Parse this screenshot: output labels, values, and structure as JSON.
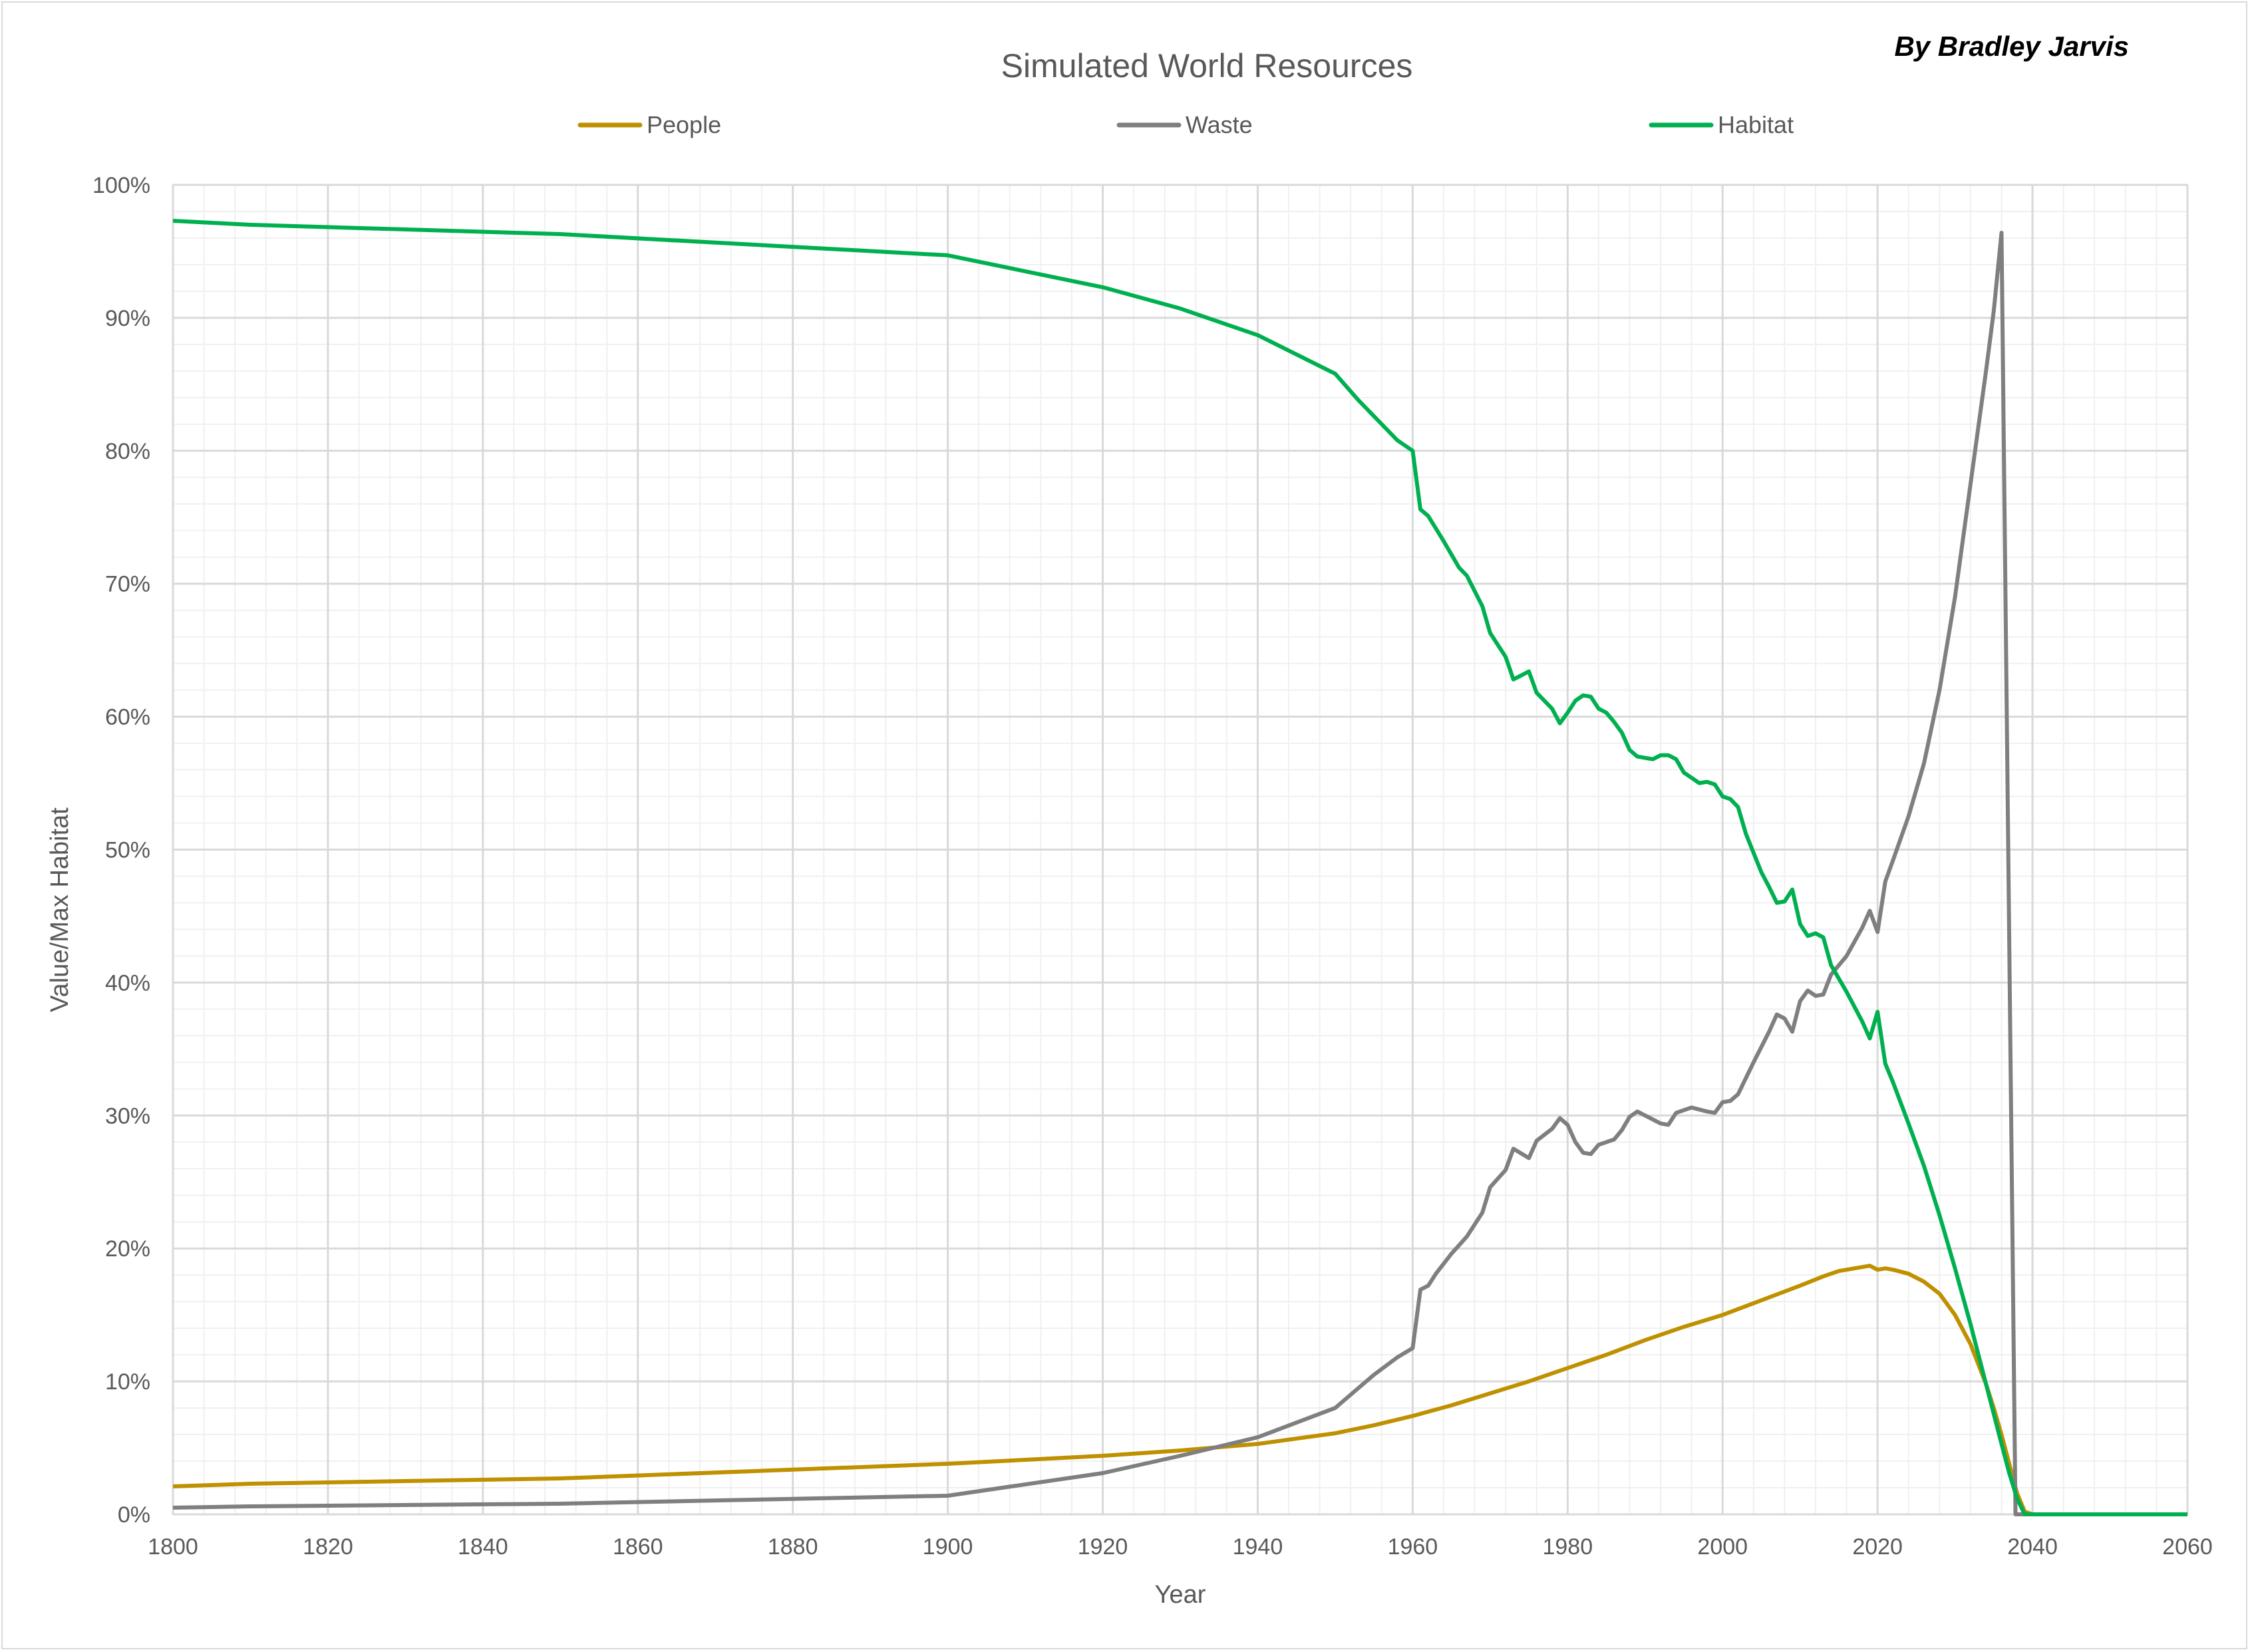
{
  "chart_data": {
    "type": "line",
    "title": "Simulated World Resources",
    "author": "By Bradley Jarvis",
    "xlabel": "Year",
    "ylabel": "Value/Max Habitat",
    "xlim": [
      1800,
      2060
    ],
    "ylim": [
      0,
      100
    ],
    "x_ticks": [
      1800,
      1820,
      1840,
      1860,
      1880,
      1900,
      1920,
      1940,
      1960,
      1980,
      2000,
      2020,
      2040,
      2060
    ],
    "x_tick_labels": [
      "1800",
      "1820",
      "1840",
      "1860",
      "1880",
      "1900",
      "1920",
      "1940",
      "1960",
      "1980",
      "2000",
      "2020",
      "2040",
      "2060"
    ],
    "y_ticks": [
      0,
      10,
      20,
      30,
      40,
      50,
      60,
      70,
      80,
      90,
      100
    ],
    "y_tick_labels": [
      "0%",
      "10%",
      "20%",
      "30%",
      "40%",
      "50%",
      "60%",
      "70%",
      "80%",
      "90%",
      "100%"
    ],
    "grid": true,
    "legend_position": "top",
    "series": [
      {
        "name": "People",
        "color": "#bf9000",
        "points": [
          [
            1800,
            2.1
          ],
          [
            1810,
            2.3
          ],
          [
            1850,
            2.7
          ],
          [
            1900,
            3.8
          ],
          [
            1920,
            4.4
          ],
          [
            1930,
            4.8
          ],
          [
            1940,
            5.3
          ],
          [
            1950,
            6.1
          ],
          [
            1955,
            6.7
          ],
          [
            1960,
            7.4
          ],
          [
            1965,
            8.2
          ],
          [
            1970,
            9.1
          ],
          [
            1975,
            10.0
          ],
          [
            1980,
            11.0
          ],
          [
            1985,
            12.0
          ],
          [
            1990,
            13.1
          ],
          [
            1995,
            14.1
          ],
          [
            2000,
            15.0
          ],
          [
            2005,
            16.1
          ],
          [
            2010,
            17.2
          ],
          [
            2013,
            17.9
          ],
          [
            2015,
            18.3
          ],
          [
            2018,
            18.6
          ],
          [
            2019,
            18.7
          ],
          [
            2020,
            18.4
          ],
          [
            2021,
            18.5
          ],
          [
            2022,
            18.4
          ],
          [
            2024,
            18.1
          ],
          [
            2026,
            17.5
          ],
          [
            2028,
            16.6
          ],
          [
            2030,
            15.0
          ],
          [
            2032,
            12.8
          ],
          [
            2034,
            9.8
          ],
          [
            2035,
            8.0
          ],
          [
            2036,
            6.0
          ],
          [
            2037,
            3.8
          ],
          [
            2038,
            1.6
          ],
          [
            2039,
            0.2
          ],
          [
            2040,
            0
          ],
          [
            2060,
            0
          ]
        ]
      },
      {
        "name": "Waste",
        "color": "#7f7f7f",
        "points": [
          [
            1800,
            0.5
          ],
          [
            1810,
            0.6
          ],
          [
            1850,
            0.8
          ],
          [
            1900,
            1.4
          ],
          [
            1920,
            3.1
          ],
          [
            1930,
            4.4
          ],
          [
            1940,
            5.8
          ],
          [
            1945,
            6.9
          ],
          [
            1950,
            8.0
          ],
          [
            1955,
            10.5
          ],
          [
            1958,
            11.8
          ],
          [
            1960,
            12.5
          ],
          [
            1961,
            16.9
          ],
          [
            1962,
            17.2
          ],
          [
            1963,
            18.1
          ],
          [
            1965,
            19.6
          ],
          [
            1967,
            20.9
          ],
          [
            1969,
            22.7
          ],
          [
            1970,
            24.6
          ],
          [
            1972,
            25.9
          ],
          [
            1973,
            27.5
          ],
          [
            1975,
            26.8
          ],
          [
            1976,
            28.1
          ],
          [
            1978,
            29.0
          ],
          [
            1979,
            29.8
          ],
          [
            1980,
            29.3
          ],
          [
            1981,
            28.0
          ],
          [
            1982,
            27.2
          ],
          [
            1983,
            27.1
          ],
          [
            1984,
            27.8
          ],
          [
            1986,
            28.2
          ],
          [
            1987,
            28.9
          ],
          [
            1988,
            29.9
          ],
          [
            1989,
            30.3
          ],
          [
            1990,
            30.0
          ],
          [
            1992,
            29.4
          ],
          [
            1993,
            29.3
          ],
          [
            1994,
            30.2
          ],
          [
            1996,
            30.6
          ],
          [
            1998,
            30.3
          ],
          [
            1999,
            30.2
          ],
          [
            2000,
            31.0
          ],
          [
            2001,
            31.1
          ],
          [
            2002,
            31.6
          ],
          [
            2004,
            34.0
          ],
          [
            2006,
            36.3
          ],
          [
            2007,
            37.6
          ],
          [
            2008,
            37.3
          ],
          [
            2009,
            36.3
          ],
          [
            2010,
            38.6
          ],
          [
            2011,
            39.4
          ],
          [
            2012,
            39.0
          ],
          [
            2013,
            39.1
          ],
          [
            2014,
            40.6
          ],
          [
            2016,
            42.0
          ],
          [
            2018,
            44.1
          ],
          [
            2019,
            45.4
          ],
          [
            2020,
            43.8
          ],
          [
            2021,
            47.6
          ],
          [
            2022,
            49.2
          ],
          [
            2024,
            52.5
          ],
          [
            2026,
            56.5
          ],
          [
            2028,
            62.0
          ],
          [
            2030,
            69.0
          ],
          [
            2032,
            77.5
          ],
          [
            2034,
            86.0
          ],
          [
            2035,
            90.5
          ],
          [
            2036,
            96.4
          ],
          [
            2037.8,
            0
          ],
          [
            2040,
            0
          ],
          [
            2060,
            0
          ]
        ]
      },
      {
        "name": "Habitat",
        "color": "#00b050",
        "points": [
          [
            1800,
            97.3
          ],
          [
            1810,
            97.0
          ],
          [
            1850,
            96.3
          ],
          [
            1900,
            94.7
          ],
          [
            1920,
            92.3
          ],
          [
            1930,
            90.7
          ],
          [
            1940,
            88.7
          ],
          [
            1950,
            85.8
          ],
          [
            1953,
            83.8
          ],
          [
            1955,
            82.6
          ],
          [
            1958,
            80.8
          ],
          [
            1960,
            80.0
          ],
          [
            1961,
            75.6
          ],
          [
            1962,
            75.1
          ],
          [
            1964,
            73.2
          ],
          [
            1966,
            71.2
          ],
          [
            1967,
            70.6
          ],
          [
            1969,
            68.3
          ],
          [
            1970,
            66.3
          ],
          [
            1972,
            64.5
          ],
          [
            1973,
            62.8
          ],
          [
            1975,
            63.4
          ],
          [
            1976,
            61.8
          ],
          [
            1978,
            60.6
          ],
          [
            1979,
            59.5
          ],
          [
            1980,
            60.3
          ],
          [
            1981,
            61.2
          ],
          [
            1982,
            61.6
          ],
          [
            1983,
            61.5
          ],
          [
            1984,
            60.6
          ],
          [
            1985,
            60.3
          ],
          [
            1986,
            59.6
          ],
          [
            1987,
            58.8
          ],
          [
            1988,
            57.5
          ],
          [
            1989,
            57.0
          ],
          [
            1991,
            56.8
          ],
          [
            1992,
            57.1
          ],
          [
            1993,
            57.1
          ],
          [
            1994,
            56.8
          ],
          [
            1995,
            55.8
          ],
          [
            1997,
            55.0
          ],
          [
            1998,
            55.1
          ],
          [
            1999,
            54.9
          ],
          [
            2000,
            54.0
          ],
          [
            2001,
            53.8
          ],
          [
            2002,
            53.2
          ],
          [
            2003,
            51.2
          ],
          [
            2005,
            48.3
          ],
          [
            2006,
            47.2
          ],
          [
            2007,
            46.0
          ],
          [
            2008,
            46.1
          ],
          [
            2009,
            47.0
          ],
          [
            2010,
            44.4
          ],
          [
            2011,
            43.5
          ],
          [
            2012,
            43.7
          ],
          [
            2013,
            43.4
          ],
          [
            2014,
            41.3
          ],
          [
            2016,
            39.3
          ],
          [
            2018,
            37.1
          ],
          [
            2019,
            35.8
          ],
          [
            2020,
            37.8
          ],
          [
            2021,
            33.9
          ],
          [
            2022,
            32.5
          ],
          [
            2024,
            29.4
          ],
          [
            2026,
            26.2
          ],
          [
            2028,
            22.5
          ],
          [
            2030,
            18.5
          ],
          [
            2032,
            14.3
          ],
          [
            2034,
            9.8
          ],
          [
            2036,
            5.3
          ],
          [
            2037,
            3.1
          ],
          [
            2038,
            1.2
          ],
          [
            2039,
            0
          ],
          [
            2060,
            0
          ]
        ]
      }
    ]
  }
}
